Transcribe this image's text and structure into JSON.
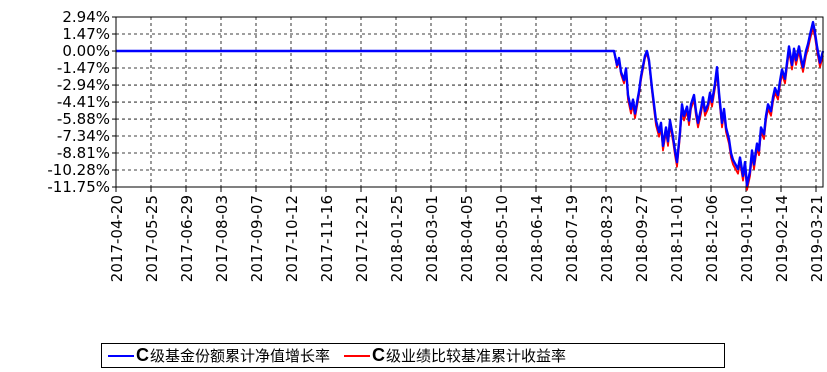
{
  "chart_data": {
    "type": "line",
    "y_ticks": [
      "2.94%",
      "1.47%",
      "0.00%",
      "-1.47%",
      "-2.94%",
      "-4.41%",
      "-5.88%",
      "-7.34%",
      "-8.81%",
      "-10.28%",
      "-11.75%"
    ],
    "y_tick_values": [
      2.94,
      1.47,
      0.0,
      -1.47,
      -2.94,
      -4.41,
      -5.88,
      -7.34,
      -8.81,
      -10.28,
      -11.75
    ],
    "ylim": [
      -11.75,
      2.94
    ],
    "x_ticks": [
      "2017-04-20",
      "2017-05-25",
      "2017-06-29",
      "2017-08-03",
      "2017-09-07",
      "2017-10-12",
      "2017-11-16",
      "2017-12-21",
      "2018-01-25",
      "2018-03-01",
      "2018-04-05",
      "2018-05-10",
      "2018-06-14",
      "2018-07-19",
      "2018-08-23",
      "2018-09-27",
      "2018-11-01",
      "2018-12-06",
      "2019-01-10",
      "2019-02-14",
      "2019-03-21"
    ],
    "xlim": [
      "2017-04-20",
      "2019-03-28"
    ],
    "grid": true,
    "legend_position": "bottom",
    "series": [
      {
        "name": "级基金份额累计净值增长率",
        "name_prefix": "C",
        "color": "#0000ff",
        "points": [
          [
            "2017-04-20",
            0.0
          ],
          [
            "2018-08-31",
            0.0
          ],
          [
            "2018-09-03",
            -1.2
          ],
          [
            "2018-09-05",
            -0.6
          ],
          [
            "2018-09-07",
            -1.8
          ],
          [
            "2018-09-10",
            -2.5
          ],
          [
            "2018-09-12",
            -1.5
          ],
          [
            "2018-09-14",
            -3.8
          ],
          [
            "2018-09-17",
            -5.0
          ],
          [
            "2018-09-19",
            -4.2
          ],
          [
            "2018-09-21",
            -5.4
          ],
          [
            "2018-09-25",
            -3.5
          ],
          [
            "2018-09-27",
            -2.2
          ],
          [
            "2018-10-01",
            -0.4
          ],
          [
            "2018-10-03",
            0.0
          ],
          [
            "2018-10-05",
            -0.8
          ],
          [
            "2018-10-08",
            -3.2
          ],
          [
            "2018-10-10",
            -4.6
          ],
          [
            "2018-10-12",
            -6.0
          ],
          [
            "2018-10-15",
            -7.0
          ],
          [
            "2018-10-17",
            -6.2
          ],
          [
            "2018-10-19",
            -8.2
          ],
          [
            "2018-10-22",
            -6.6
          ],
          [
            "2018-10-24",
            -7.8
          ],
          [
            "2018-10-26",
            -6.0
          ],
          [
            "2018-10-29",
            -7.4
          ],
          [
            "2018-10-31",
            -8.6
          ],
          [
            "2018-11-02",
            -9.6
          ],
          [
            "2018-11-05",
            -7.0
          ],
          [
            "2018-11-07",
            -4.6
          ],
          [
            "2018-11-09",
            -5.6
          ],
          [
            "2018-11-12",
            -4.8
          ],
          [
            "2018-11-14",
            -6.0
          ],
          [
            "2018-11-16",
            -4.6
          ],
          [
            "2018-11-19",
            -3.8
          ],
          [
            "2018-11-21",
            -5.2
          ],
          [
            "2018-11-23",
            -6.2
          ],
          [
            "2018-11-26",
            -5.0
          ],
          [
            "2018-11-28",
            -4.0
          ],
          [
            "2018-11-30",
            -5.2
          ],
          [
            "2018-12-03",
            -4.6
          ],
          [
            "2018-12-05",
            -3.6
          ],
          [
            "2018-12-07",
            -4.4
          ],
          [
            "2018-12-10",
            -2.8
          ],
          [
            "2018-12-12",
            -1.4
          ],
          [
            "2018-12-14",
            -3.6
          ],
          [
            "2018-12-17",
            -6.2
          ],
          [
            "2018-12-19",
            -5.0
          ],
          [
            "2018-12-21",
            -6.6
          ],
          [
            "2018-12-24",
            -7.6
          ],
          [
            "2018-12-26",
            -8.8
          ],
          [
            "2018-12-28",
            -9.4
          ],
          [
            "2019-01-02",
            -10.2
          ],
          [
            "2019-01-04",
            -9.2
          ],
          [
            "2019-01-07",
            -10.8
          ],
          [
            "2019-01-09",
            -9.6
          ],
          [
            "2019-01-11",
            -11.6
          ],
          [
            "2019-01-14",
            -10.4
          ],
          [
            "2019-01-16",
            -8.6
          ],
          [
            "2019-01-18",
            -9.8
          ],
          [
            "2019-01-21",
            -8.0
          ],
          [
            "2019-01-23",
            -8.6
          ],
          [
            "2019-01-25",
            -6.6
          ],
          [
            "2019-01-28",
            -7.2
          ],
          [
            "2019-01-30",
            -5.6
          ],
          [
            "2019-02-01",
            -4.6
          ],
          [
            "2019-02-04",
            -5.2
          ],
          [
            "2019-02-06",
            -4.0
          ],
          [
            "2019-02-08",
            -3.2
          ],
          [
            "2019-02-11",
            -3.8
          ],
          [
            "2019-02-13",
            -2.6
          ],
          [
            "2019-02-15",
            -1.6
          ],
          [
            "2019-02-18",
            -2.4
          ],
          [
            "2019-02-20",
            -1.0
          ],
          [
            "2019-02-22",
            0.4
          ],
          [
            "2019-02-25",
            -1.2
          ],
          [
            "2019-02-27",
            0.2
          ],
          [
            "2019-03-01",
            -0.8
          ],
          [
            "2019-03-04",
            0.4
          ],
          [
            "2019-03-06",
            -0.6
          ],
          [
            "2019-03-08",
            -1.4
          ],
          [
            "2019-03-11",
            0.0
          ],
          [
            "2019-03-13",
            0.6
          ],
          [
            "2019-03-15",
            1.4
          ],
          [
            "2019-03-18",
            2.5
          ],
          [
            "2019-03-20",
            1.6
          ],
          [
            "2019-03-22",
            0.4
          ],
          [
            "2019-03-25",
            -1.0
          ],
          [
            "2019-03-28",
            0.0
          ]
        ]
      },
      {
        "name": "级业绩比较基准累计收益率",
        "name_prefix": "C",
        "color": "#ff0000",
        "points": [
          [
            "2017-04-20",
            0.0
          ],
          [
            "2018-08-31",
            0.0
          ],
          [
            "2018-09-03",
            -1.4
          ],
          [
            "2018-09-05",
            -0.8
          ],
          [
            "2018-09-07",
            -2.0
          ],
          [
            "2018-09-10",
            -2.8
          ],
          [
            "2018-09-12",
            -1.8
          ],
          [
            "2018-09-14",
            -4.2
          ],
          [
            "2018-09-17",
            -5.4
          ],
          [
            "2018-09-19",
            -4.6
          ],
          [
            "2018-09-21",
            -5.8
          ],
          [
            "2018-09-25",
            -3.8
          ],
          [
            "2018-09-27",
            -2.5
          ],
          [
            "2018-10-01",
            -0.6
          ],
          [
            "2018-10-03",
            -0.2
          ],
          [
            "2018-10-05",
            -1.0
          ],
          [
            "2018-10-08",
            -3.5
          ],
          [
            "2018-10-10",
            -5.0
          ],
          [
            "2018-10-12",
            -6.4
          ],
          [
            "2018-10-15",
            -7.4
          ],
          [
            "2018-10-17",
            -6.6
          ],
          [
            "2018-10-19",
            -8.6
          ],
          [
            "2018-10-22",
            -7.0
          ],
          [
            "2018-10-24",
            -8.2
          ],
          [
            "2018-10-26",
            -6.4
          ],
          [
            "2018-10-29",
            -7.8
          ],
          [
            "2018-10-31",
            -9.0
          ],
          [
            "2018-11-02",
            -10.0
          ],
          [
            "2018-11-05",
            -7.4
          ],
          [
            "2018-11-07",
            -5.0
          ],
          [
            "2018-11-09",
            -6.0
          ],
          [
            "2018-11-12",
            -5.2
          ],
          [
            "2018-11-14",
            -6.4
          ],
          [
            "2018-11-16",
            -5.0
          ],
          [
            "2018-11-19",
            -4.2
          ],
          [
            "2018-11-21",
            -5.6
          ],
          [
            "2018-11-23",
            -6.6
          ],
          [
            "2018-11-26",
            -5.4
          ],
          [
            "2018-11-28",
            -4.4
          ],
          [
            "2018-11-30",
            -5.6
          ],
          [
            "2018-12-03",
            -5.0
          ],
          [
            "2018-12-05",
            -4.0
          ],
          [
            "2018-12-07",
            -4.8
          ],
          [
            "2018-12-10",
            -3.2
          ],
          [
            "2018-12-12",
            -1.8
          ],
          [
            "2018-12-14",
            -4.0
          ],
          [
            "2018-12-17",
            -6.6
          ],
          [
            "2018-12-19",
            -5.4
          ],
          [
            "2018-12-21",
            -7.0
          ],
          [
            "2018-12-24",
            -8.0
          ],
          [
            "2018-12-26",
            -9.2
          ],
          [
            "2018-12-28",
            -9.8
          ],
          [
            "2019-01-02",
            -10.6
          ],
          [
            "2019-01-04",
            -9.6
          ],
          [
            "2019-01-07",
            -11.2
          ],
          [
            "2019-01-09",
            -10.0
          ],
          [
            "2019-01-11",
            -12.0
          ],
          [
            "2019-01-14",
            -10.8
          ],
          [
            "2019-01-16",
            -9.0
          ],
          [
            "2019-01-18",
            -10.2
          ],
          [
            "2019-01-21",
            -8.4
          ],
          [
            "2019-01-23",
            -9.0
          ],
          [
            "2019-01-25",
            -7.0
          ],
          [
            "2019-01-28",
            -7.6
          ],
          [
            "2019-01-30",
            -6.0
          ],
          [
            "2019-02-01",
            -5.0
          ],
          [
            "2019-02-04",
            -5.6
          ],
          [
            "2019-02-06",
            -4.4
          ],
          [
            "2019-02-08",
            -3.6
          ],
          [
            "2019-02-11",
            -4.2
          ],
          [
            "2019-02-13",
            -3.0
          ],
          [
            "2019-02-15",
            -2.0
          ],
          [
            "2019-02-18",
            -2.8
          ],
          [
            "2019-02-20",
            -1.4
          ],
          [
            "2019-02-22",
            0.0
          ],
          [
            "2019-02-25",
            -1.6
          ],
          [
            "2019-02-27",
            -0.2
          ],
          [
            "2019-03-01",
            -1.2
          ],
          [
            "2019-03-04",
            0.0
          ],
          [
            "2019-03-06",
            -1.0
          ],
          [
            "2019-03-08",
            -1.8
          ],
          [
            "2019-03-11",
            -0.4
          ],
          [
            "2019-03-13",
            0.2
          ],
          [
            "2019-03-15",
            1.0
          ],
          [
            "2019-03-18",
            2.0
          ],
          [
            "2019-03-20",
            1.2
          ],
          [
            "2019-03-22",
            0.0
          ],
          [
            "2019-03-25",
            -1.4
          ],
          [
            "2019-03-28",
            -0.4
          ]
        ]
      }
    ]
  }
}
